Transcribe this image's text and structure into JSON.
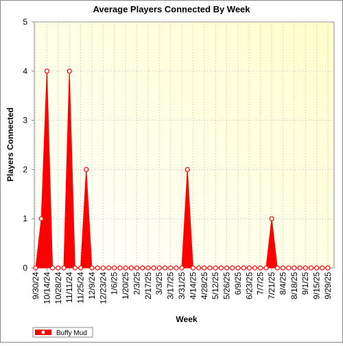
{
  "chart_data": {
    "type": "area",
    "title": "Average Players Connected By Week",
    "x_label": "Week",
    "y_label": "Players Connected",
    "categories": [
      "9/30/24",
      null,
      "10/14/24",
      null,
      "10/28/24",
      null,
      "11/11/24",
      null,
      "11/25/24",
      null,
      "12/9/24",
      null,
      "12/23/24",
      null,
      "1/6/25",
      null,
      "1/20/25",
      null,
      "2/3/25",
      null,
      "2/17/25",
      null,
      "3/3/25",
      null,
      "3/17/25",
      null,
      "3/31/25",
      null,
      "4/14/25",
      null,
      "4/28/25",
      null,
      "5/12/25",
      null,
      "5/26/25",
      null,
      "6/9/25",
      null,
      "6/23/25",
      null,
      "7/7/25",
      null,
      "7/21/25",
      null,
      "8/4/25",
      null,
      "8/18/25",
      null,
      "9/1/25",
      null,
      "9/15/25",
      null,
      "9/29/25"
    ],
    "series": [
      {
        "name": "Buffy Mud",
        "color": "#ff0000",
        "values": [
          0,
          1,
          4,
          0,
          0,
          0,
          4,
          0,
          0,
          2,
          0,
          0,
          0,
          0,
          0,
          0,
          0,
          0,
          0,
          0,
          0,
          0,
          0,
          0,
          0,
          0,
          0,
          2,
          0,
          0,
          0,
          0,
          0,
          0,
          0,
          0,
          0,
          0,
          0,
          0,
          0,
          0,
          1,
          0,
          0,
          0,
          0,
          0,
          0,
          0,
          0,
          0,
          0
        ]
      }
    ],
    "ylim": [
      0,
      5
    ],
    "yticks": [
      0,
      1,
      2,
      3,
      4,
      5
    ],
    "grid": true,
    "legend": "bottom-left"
  }
}
